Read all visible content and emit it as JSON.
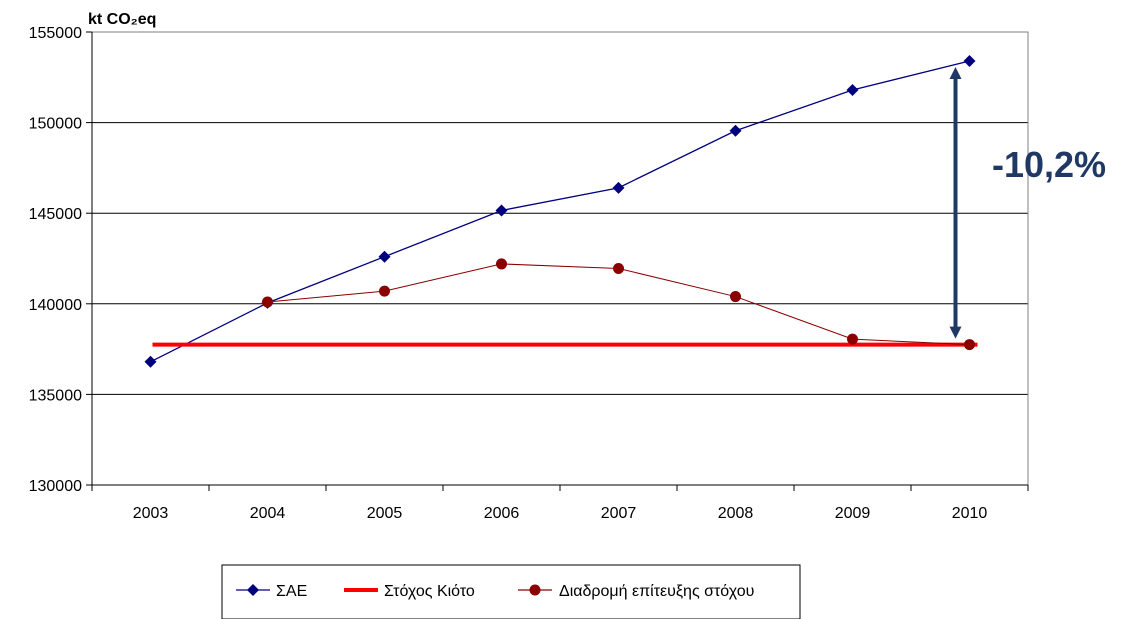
{
  "chart_data": {
    "type": "line",
    "ylabel": "kt CO₂eq",
    "categories": [
      "2003",
      "2004",
      "2005",
      "2006",
      "2007",
      "2008",
      "2009",
      "2010"
    ],
    "ylim": [
      130000,
      155000
    ],
    "yticks": [
      130000,
      135000,
      140000,
      145000,
      150000,
      155000
    ],
    "grid": true,
    "legend_position": "bottom",
    "series": [
      {
        "name": "ΣΑΕ",
        "values": [
          136800,
          140050,
          142600,
          145150,
          146400,
          149550,
          151800,
          153400
        ],
        "color": "#00007f",
        "marker": "diamond"
      },
      {
        "name": "Στόχος Κιότο",
        "values": [
          137750,
          137750,
          137750,
          137750,
          137750,
          137750,
          137750,
          137750
        ],
        "color": "#ff0000",
        "marker": "none"
      },
      {
        "name": "Διαδρομή επίτευξης στόχου",
        "values": [
          null,
          140100,
          140700,
          142200,
          141950,
          140400,
          138050,
          137750
        ],
        "color": "#8b0000",
        "marker": "circle"
      }
    ],
    "annotation": {
      "text": "-10,2%",
      "color": "#1f3864",
      "category": "2010",
      "from_value": 153400,
      "to_value": 137750
    }
  }
}
